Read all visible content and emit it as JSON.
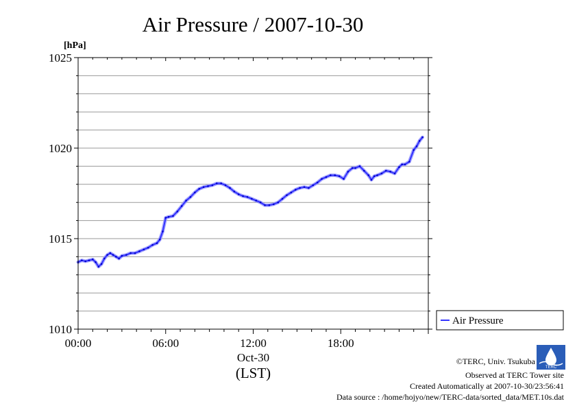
{
  "chart_data": {
    "type": "line",
    "title": "Air Pressure / 2007-10-30",
    "ylabel": "[hPa]",
    "ylim": [
      1010,
      1025
    ],
    "y_ticks": [
      "1010",
      "1015",
      "1020",
      "1025"
    ],
    "y_minor_step": 1,
    "xlim": [
      0,
      24
    ],
    "x_ticks": [
      {
        "x": 0,
        "label": "00:00"
      },
      {
        "x": 6,
        "label": "06:00"
      },
      {
        "x": 12,
        "label": "12:00"
      },
      {
        "x": 18,
        "label": "18:00"
      }
    ],
    "x_date_label": "Oct-30",
    "x_timezone_label": "(LST)",
    "grid": true,
    "legend_position": "right",
    "series": [
      {
        "name": "Air Pressure",
        "color": "#3333ff",
        "x": [
          0.0,
          0.25,
          0.5,
          0.75,
          1.0,
          1.2,
          1.4,
          1.6,
          1.8,
          2.0,
          2.2,
          2.4,
          2.6,
          2.8,
          3.0,
          3.3,
          3.6,
          3.9,
          4.2,
          4.5,
          4.8,
          5.1,
          5.4,
          5.6,
          5.8,
          6.0,
          6.2,
          6.5,
          6.8,
          7.1,
          7.4,
          7.7,
          8.0,
          8.3,
          8.6,
          8.9,
          9.2,
          9.5,
          9.8,
          10.1,
          10.4,
          10.7,
          11.0,
          11.3,
          11.6,
          11.9,
          12.2,
          12.5,
          12.8,
          13.1,
          13.4,
          13.7,
          14.0,
          14.3,
          14.6,
          14.9,
          15.2,
          15.5,
          15.8,
          16.1,
          16.4,
          16.7,
          17.0,
          17.3,
          17.6,
          17.9,
          18.2,
          18.5,
          18.8,
          19.0,
          19.3,
          19.6,
          19.9,
          20.1,
          20.3,
          20.5,
          20.8,
          21.1,
          21.4,
          21.7,
          22.0,
          22.2,
          22.4,
          22.7,
          23.0,
          23.2,
          23.4,
          23.6
        ],
        "values": [
          1013.7,
          1013.8,
          1013.75,
          1013.8,
          1013.85,
          1013.7,
          1013.45,
          1013.6,
          1013.9,
          1014.1,
          1014.2,
          1014.1,
          1014.0,
          1013.9,
          1014.05,
          1014.1,
          1014.2,
          1014.2,
          1014.3,
          1014.4,
          1014.5,
          1014.65,
          1014.75,
          1014.95,
          1015.4,
          1016.15,
          1016.2,
          1016.25,
          1016.5,
          1016.8,
          1017.1,
          1017.3,
          1017.55,
          1017.75,
          1017.85,
          1017.9,
          1017.95,
          1018.05,
          1018.05,
          1017.95,
          1017.8,
          1017.6,
          1017.45,
          1017.35,
          1017.3,
          1017.2,
          1017.1,
          1017.0,
          1016.85,
          1016.85,
          1016.9,
          1017.0,
          1017.2,
          1017.4,
          1017.55,
          1017.7,
          1017.8,
          1017.85,
          1017.8,
          1017.95,
          1018.1,
          1018.3,
          1018.4,
          1018.5,
          1018.5,
          1018.45,
          1018.3,
          1018.7,
          1018.9,
          1018.9,
          1019.0,
          1018.75,
          1018.5,
          1018.25,
          1018.45,
          1018.5,
          1018.6,
          1018.75,
          1018.7,
          1018.6,
          1018.95,
          1019.1,
          1019.1,
          1019.25,
          1019.9,
          1020.1,
          1020.4,
          1020.6
        ]
      }
    ]
  },
  "footer": {
    "copyright": "©TERC, Univ. Tsukuba",
    "observed": "Observed at TERC Tower site",
    "created": "Created Automatically at 2007-10-30/23:56:41",
    "source": "Data source : /home/hojyo/new/TERC-data/sorted_data/MET.10s.dat",
    "logo_text": "TERC"
  }
}
